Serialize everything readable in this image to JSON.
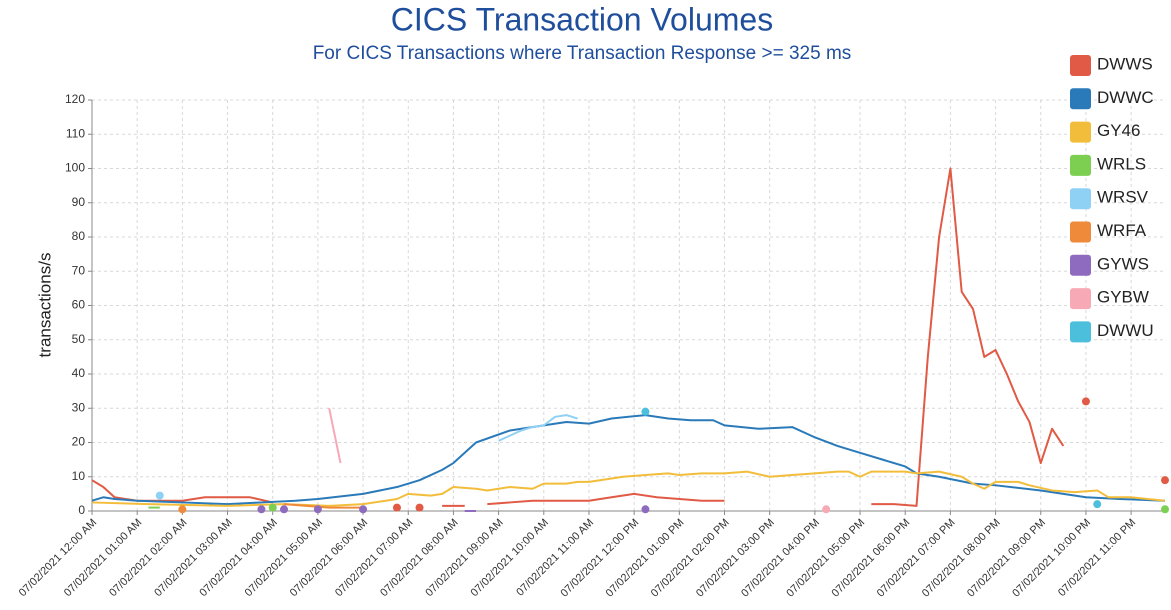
{
  "chart_data": {
    "type": "line",
    "title": "CICS Transaction Volumes",
    "subtitle": "For CICS Transactions where Transaction Response >= 325 ms",
    "y_label": "transactions/s",
    "xlim": [
      0,
      23.75
    ],
    "xticks": [
      {
        "value": 0,
        "label": "07/02/2021 12:00 AM"
      },
      {
        "value": 1,
        "label": "07/02/2021 01:00 AM"
      },
      {
        "value": 2,
        "label": "07/02/2021 02:00 AM"
      },
      {
        "value": 3,
        "label": "07/02/2021 03:00 AM"
      },
      {
        "value": 4,
        "label": "07/02/2021 04:00 AM"
      },
      {
        "value": 5,
        "label": "07/02/2021 05:00 AM"
      },
      {
        "value": 6,
        "label": "07/02/2021 06:00 AM"
      },
      {
        "value": 7,
        "label": "07/02/2021 07:00 AM"
      },
      {
        "value": 8,
        "label": "07/02/2021 08:00 AM"
      },
      {
        "value": 9,
        "label": "07/02/2021 09:00 AM"
      },
      {
        "value": 10,
        "label": "07/02/2021 10:00 AM"
      },
      {
        "value": 11,
        "label": "07/02/2021 11:00 AM"
      },
      {
        "value": 12,
        "label": "07/02/2021 12:00 PM"
      },
      {
        "value": 13,
        "label": "07/02/2021 01:00 PM"
      },
      {
        "value": 14,
        "label": "07/02/2021 02:00 PM"
      },
      {
        "value": 15,
        "label": "07/02/2021 03:00 PM"
      },
      {
        "value": 16,
        "label": "07/02/2021 04:00 PM"
      },
      {
        "value": 17,
        "label": "07/02/2021 05:00 PM"
      },
      {
        "value": 18,
        "label": "07/02/2021 06:00 PM"
      },
      {
        "value": 19,
        "label": "07/02/2021 07:00 PM"
      },
      {
        "value": 20,
        "label": "07/02/2021 08:00 PM"
      },
      {
        "value": 21,
        "label": "07/02/2021 09:00 PM"
      },
      {
        "value": 22,
        "label": "07/02/2021 10:00 PM"
      },
      {
        "value": 23,
        "label": "07/02/2021 11:00 PM"
      }
    ],
    "ylim": [
      0,
      120
    ],
    "yticks": [
      0,
      10,
      20,
      30,
      40,
      50,
      60,
      70,
      80,
      90,
      100,
      110,
      120
    ],
    "grid": true,
    "legend": "right",
    "series": [
      {
        "name": "DWWS",
        "color": "#e05a45",
        "x": [
          0,
          0.25,
          0.5,
          1,
          2,
          2.5,
          3.5,
          4,
          5,
          6.75,
          7,
          7.25,
          7.5,
          7.75,
          8.25,
          8.5,
          8.75,
          9.25,
          9.75,
          10.25,
          11,
          11.5,
          12,
          12.5,
          13,
          13.5,
          14,
          15,
          17.25,
          17.75,
          18.25,
          18.5,
          18.75,
          19,
          19.25,
          19.5,
          19.75,
          20,
          20.25,
          20.5,
          20.75,
          21,
          21.25,
          21.5,
          21.75,
          22,
          23,
          23.75
        ],
        "values": [
          9,
          7,
          4,
          3,
          3,
          4,
          4,
          2.5,
          null,
          1,
          null,
          1,
          null,
          1.5,
          1.5,
          null,
          2,
          2.5,
          3,
          3,
          3,
          4,
          5,
          4,
          3.5,
          3,
          3,
          null,
          2,
          2,
          1.5,
          45,
          80,
          100,
          64,
          59,
          45,
          47,
          40,
          32,
          26,
          14,
          24,
          19,
          null,
          32,
          null,
          9
        ]
      },
      {
        "name": "DWWC",
        "color": "#2a7ab9",
        "x": [
          0,
          0.25,
          0.5,
          1,
          2,
          3,
          3.75,
          4.5,
          5,
          6,
          6.75,
          7.25,
          7.75,
          8,
          8.25,
          8.5,
          9.25,
          10,
          10.5,
          11,
          11.5,
          12.25,
          12.75,
          13.25,
          13.75,
          14,
          14.75,
          15.5,
          16,
          16.5,
          17,
          17.5,
          18,
          18.25,
          18.75,
          19.5,
          20,
          21,
          21.5,
          22,
          22.75,
          23.75
        ],
        "values": [
          3,
          4,
          3.5,
          3,
          2.5,
          2,
          2.5,
          3,
          3.5,
          5,
          7,
          9,
          12,
          14,
          17,
          20,
          23.5,
          25,
          26,
          25.5,
          27,
          28,
          27,
          26.5,
          26.5,
          25,
          24,
          24.5,
          21.5,
          19,
          17,
          15,
          13,
          11,
          10,
          8,
          7.5,
          6,
          5,
          4,
          3.5,
          3
        ]
      },
      {
        "name": "GY46",
        "color": "#f2bd3a",
        "x": [
          0,
          1.25,
          3,
          4.25,
          5.25,
          6,
          6.5,
          6.75,
          7,
          7.5,
          7.75,
          8,
          8.5,
          8.75,
          9.25,
          9.75,
          10,
          10.5,
          10.75,
          11,
          11.5,
          11.75,
          12.25,
          12.75,
          13,
          13.5,
          14,
          14.5,
          15,
          15.5,
          16,
          16.5,
          16.75,
          17,
          17.25,
          18,
          18.25,
          18.75,
          19.25,
          19.5,
          19.75,
          20,
          20.5,
          20.75,
          21.25,
          21.75,
          22.25,
          22.5,
          23,
          23.75
        ],
        "values": [
          2.5,
          2,
          1.5,
          2,
          1.5,
          2,
          3,
          3.5,
          5,
          4.5,
          5,
          7,
          6.5,
          6,
          7,
          6.5,
          8,
          8,
          8.5,
          8.5,
          9.5,
          10,
          10.5,
          11,
          10.5,
          11,
          11,
          11.5,
          10,
          10.5,
          11,
          11.5,
          11.5,
          10,
          11.5,
          11.5,
          11,
          11.5,
          10,
          8,
          6.5,
          8.5,
          8.5,
          7.5,
          6,
          5.5,
          6,
          4,
          4,
          3
        ]
      },
      {
        "name": "WRLS",
        "color": "#7ccf50",
        "x": [
          1.25,
          1.5,
          3,
          4,
          5,
          23.75
        ],
        "values": [
          1,
          1,
          null,
          1,
          null,
          0.5
        ]
      },
      {
        "name": "WRSV",
        "color": "#8fd0f5",
        "x": [
          1.5,
          5,
          9,
          9.25,
          9.5,
          9.75,
          10,
          10.25,
          10.5,
          10.75
        ],
        "values": [
          4.5,
          null,
          20.5,
          22,
          23.5,
          24.5,
          25,
          27.5,
          28,
          27
        ]
      },
      {
        "name": "WRFA",
        "color": "#ee8a3a",
        "x": [
          2,
          3,
          4.25,
          4.75,
          5.25,
          5.75,
          6
        ],
        "values": [
          0.5,
          null,
          2,
          1.5,
          1,
          1,
          1
        ]
      },
      {
        "name": "GYWS",
        "color": "#8e6bbf",
        "x": [
          3.75,
          4,
          4.25,
          4.5,
          5,
          5.5,
          6,
          7,
          8.25,
          8.5,
          12,
          12.25
        ],
        "values": [
          0.5,
          null,
          0.5,
          null,
          0.5,
          null,
          0.5,
          null,
          0,
          0,
          null,
          0.5
        ]
      },
      {
        "name": "GYBW",
        "color": "#f7a9b6",
        "x": [
          5.25,
          5.5,
          10,
          16.25
        ],
        "values": [
          30,
          14,
          null,
          0.5
        ]
      },
      {
        "name": "DWWU",
        "color": "#4bbfdc",
        "x": [
          12.25,
          18,
          22.25
        ],
        "values": [
          29,
          null,
          2
        ]
      }
    ]
  }
}
